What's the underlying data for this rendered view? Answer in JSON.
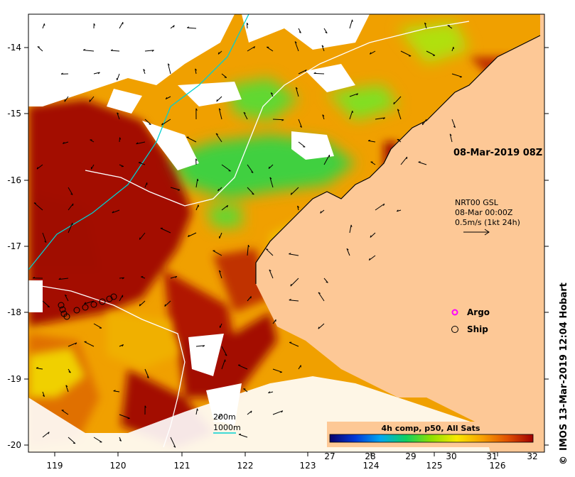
{
  "map": {
    "timestamp_label": "08-Mar-2019 08Z",
    "current_legend": {
      "line1": "NRT00 GSL",
      "line2": "08-Mar 00:00Z",
      "line3": "0.5m/s (1kt 24h)"
    },
    "markers_legend": [
      {
        "label": "Argo",
        "color": "#ff00ff"
      },
      {
        "label": "Ship",
        "color": "#000000"
      }
    ],
    "depth_legend": [
      {
        "label": "200m",
        "color": "#ffffff"
      },
      {
        "label": "1000m",
        "color": "#00d0d0"
      }
    ],
    "colorbar": {
      "title": "4h comp, p50, All Sats",
      "ticks": [
        "27",
        "28",
        "29",
        "30",
        "31",
        "32"
      ],
      "colors": [
        "#08006a",
        "#0038d8",
        "#00a8f0",
        "#10d060",
        "#90e000",
        "#f8e800",
        "#f8a000",
        "#e05000",
        "#a00000"
      ]
    },
    "credit": "IMOS 13-Mar-2019 12:04 Hobart",
    "credit_symbol": "©",
    "axes": {
      "lon_ticks": [
        "119",
        "120",
        "121",
        "122",
        "123",
        "124",
        "125",
        "126"
      ],
      "lat_ticks": [
        "-14",
        "-15",
        "-16",
        "-17",
        "-18",
        "-19",
        "-20"
      ]
    },
    "colors": {
      "land": "#fdc896",
      "sst_dark": "#a01000",
      "sst_orange": "#f0a000",
      "sst_green": "#40d040",
      "cloud": "#ffffff"
    }
  }
}
